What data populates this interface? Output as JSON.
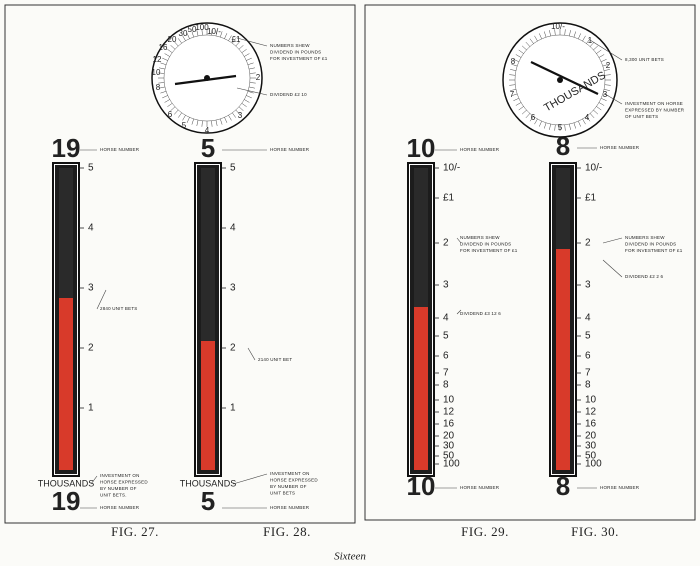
{
  "figures": [
    {
      "caption": "FIG. 27.",
      "horse_number": "19",
      "scale_unit": "THOUSANDS",
      "scale": [
        "5",
        "4",
        "3",
        "2",
        "1"
      ],
      "notes": {
        "top": [
          "HORSE NUMBER"
        ],
        "level": [
          "2840 UNIT BETS"
        ],
        "bottom": [
          "INVESTMENT ON",
          "HORSE EXPRESSED",
          "BY NUMBER OF",
          "UNIT BETS."
        ],
        "horse": [
          "HORSE NUMBER"
        ]
      }
    },
    {
      "caption": "FIG. 28.",
      "horse_number": "5",
      "scale_unit": "THOUSANDS",
      "scale": [
        "5",
        "4",
        "3",
        "2",
        "1"
      ],
      "dial": [
        "10/-",
        "£1",
        "2",
        "3",
        "4",
        "5",
        "6",
        "8",
        "10",
        "12",
        "16",
        "20",
        "30",
        "50",
        "100"
      ],
      "notes": {
        "dial": [
          "NUMBERS SHEW",
          "DIVIDEND IN POUNDS",
          "FOR INVESTMENT OF £1"
        ],
        "dividend": [
          "DIVIDEND £2 10"
        ],
        "top": [
          "HORSE NUMBER"
        ],
        "level": [
          "2140 UNIT BET"
        ],
        "bottom": [
          "INVESTMENT ON",
          "HORSE EXPRESSED",
          "BY NUMBER OF",
          "UNIT BETS"
        ],
        "horse": [
          "HORSE NUMBER"
        ]
      }
    },
    {
      "caption": "FIG. 29.",
      "horse_number": "10",
      "scale": [
        "10/-",
        "£1",
        "2",
        "3",
        "4",
        "5",
        "6",
        "7",
        "8",
        "10",
        "12",
        "16",
        "20",
        "30",
        "50",
        "100"
      ],
      "notes": {
        "top": [
          "HORSE NUMBER"
        ],
        "level": [
          "NUMBERS SHEW",
          "DIVIDEND IN POUNDS",
          "FOR INVESTMENT OF £1"
        ],
        "dividend": [
          "DIVIDEND £3 12 6"
        ],
        "horse": [
          "HORSE NUMBER"
        ]
      }
    },
    {
      "caption": "FIG. 30.",
      "horse_number": "8",
      "dial_unit": "THOUSANDS",
      "scale": [
        "10/-",
        "£1",
        "2",
        "3",
        "4",
        "5",
        "6",
        "7",
        "8",
        "10",
        "12",
        "16",
        "20",
        "30",
        "50",
        "100"
      ],
      "dial": [
        "10/-",
        "1",
        "2",
        "3",
        "4",
        "5",
        "6",
        "7",
        "8"
      ],
      "notes": {
        "dial": [
          "8,300 UNIT BETS"
        ],
        "investment": [
          "INVESTMENT ON HORSE",
          "EXPRESSED BY NUMBER",
          "OF UNIT BETS"
        ],
        "top": [
          "HORSE NUMBER"
        ],
        "level": [
          "NUMBERS SHEW",
          "DIVIDEND IN POUNDS",
          "FOR INVESTMENT OF £1"
        ],
        "dividend": [
          "DIVIDEND £2 2 6"
        ],
        "horse": [
          "HORSE NUMBER"
        ]
      }
    }
  ],
  "footer": "Sixteen"
}
